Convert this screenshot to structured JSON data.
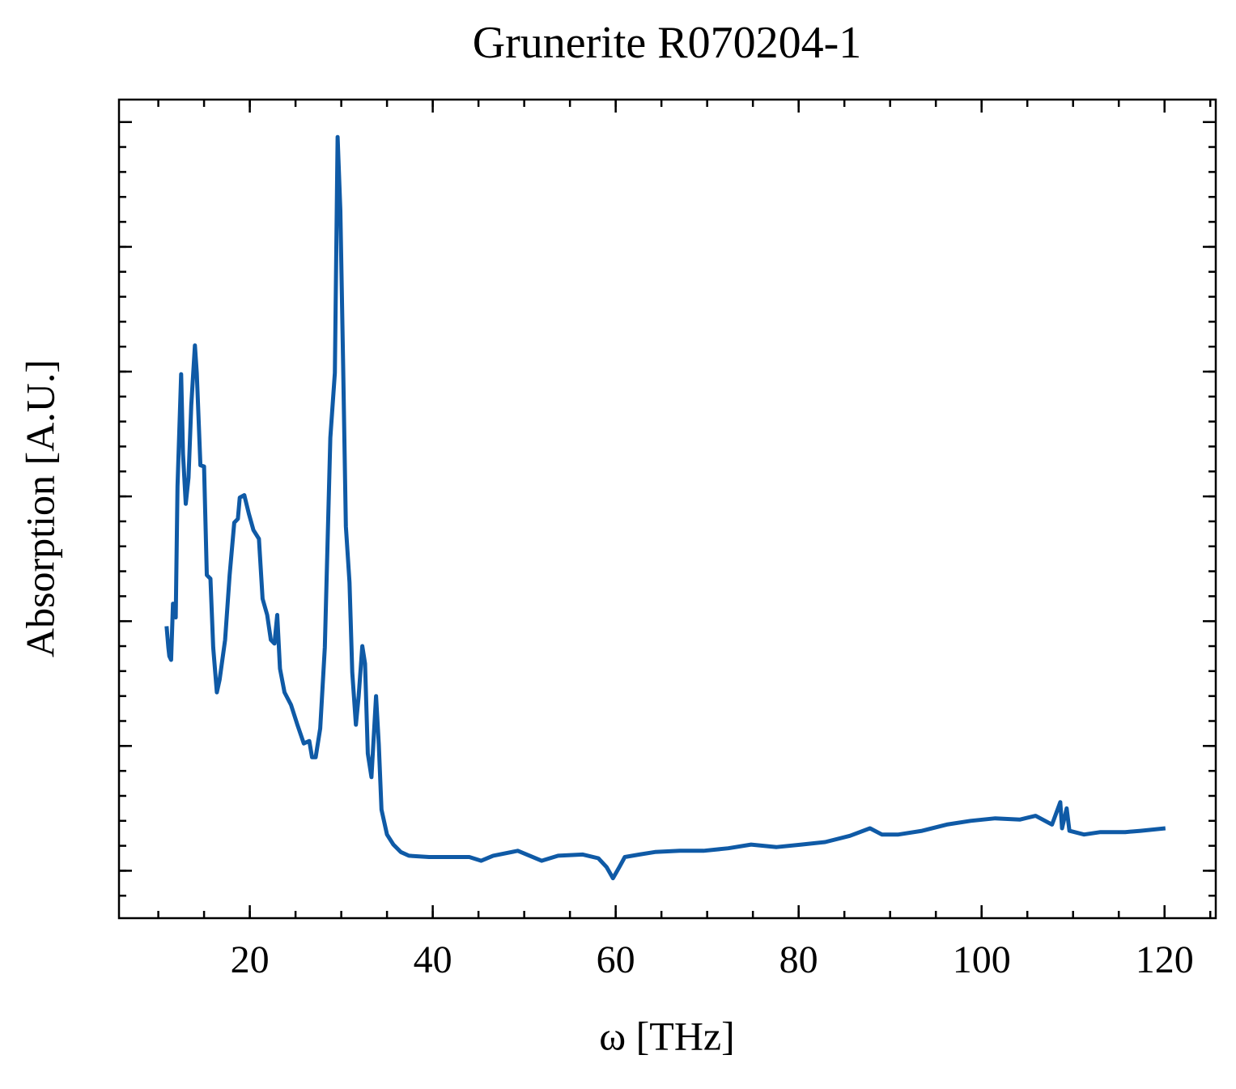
{
  "chart_data": {
    "type": "line",
    "title": "Grunerite R070204-1",
    "x_label": "ω [THz]",
    "y_label": "Absorption [A.U.]",
    "color": "#0f5aa6",
    "xlim": [
      5.7,
      125.6
    ],
    "xticks": [
      20,
      40,
      60,
      80,
      100,
      120
    ],
    "x_minor_step": 5,
    "ylim": [
      -0.38,
      6.18
    ],
    "yticks": [
      0,
      1,
      2,
      3,
      4,
      5,
      6
    ],
    "y_minor_step": 0.2,
    "x": [
      10.9,
      11.1,
      11.2,
      11.4,
      11.6,
      11.9,
      12.1,
      12.5,
      12.7,
      13.0,
      13.3,
      13.6,
      14.0,
      14.2,
      14.6,
      15.0,
      15.3,
      15.7,
      16.0,
      16.4,
      16.7,
      17.3,
      17.8,
      18.3,
      18.7,
      18.9,
      19.4,
      19.9,
      20.4,
      21.0,
      21.4,
      21.9,
      22.3,
      22.7,
      23.0,
      23.3,
      23.8,
      24.5,
      25.2,
      25.9,
      26.5,
      26.8,
      27.2,
      27.7,
      28.2,
      28.8,
      29.3,
      29.6,
      29.9,
      30.2,
      30.5,
      30.9,
      31.2,
      31.6,
      31.9,
      32.3,
      32.6,
      32.9,
      33.3,
      33.8,
      34.1,
      34.4,
      35.0,
      35.7,
      36.5,
      37.4,
      39.6,
      42.2,
      44.0,
      45.3,
      46.6,
      49.3,
      50.6,
      51.9,
      53.7,
      56.4,
      58.1,
      59.0,
      59.7,
      60.4,
      61.0,
      62.6,
      64.3,
      67.0,
      69.6,
      72.3,
      74.8,
      77.6,
      80.3,
      82.9,
      85.6,
      87.8,
      89.1,
      90.9,
      93.5,
      96.2,
      98.8,
      101.5,
      104.2,
      105.9,
      107.7,
      108.6,
      108.8,
      109.3,
      109.6,
      111.2,
      113.0,
      115.7,
      117.4,
      120.1
    ],
    "values": [
      1.96,
      1.79,
      1.72,
      1.69,
      2.14,
      2.03,
      3.08,
      3.98,
      3.34,
      2.94,
      3.15,
      3.73,
      4.21,
      3.99,
      3.25,
      3.24,
      2.37,
      2.34,
      1.79,
      1.43,
      1.53,
      1.85,
      2.37,
      2.79,
      2.82,
      2.99,
      3.01,
      2.86,
      2.73,
      2.66,
      2.18,
      2.05,
      1.85,
      1.82,
      2.05,
      1.62,
      1.43,
      1.33,
      1.17,
      1.02,
      1.04,
      0.91,
      0.91,
      1.14,
      1.79,
      3.47,
      3.99,
      5.88,
      5.29,
      4.06,
      2.76,
      2.31,
      1.59,
      1.17,
      1.4,
      1.8,
      1.66,
      0.94,
      0.75,
      1.4,
      1.01,
      0.49,
      0.29,
      0.21,
      0.15,
      0.12,
      0.11,
      0.11,
      0.11,
      0.08,
      0.12,
      0.16,
      0.12,
      0.08,
      0.12,
      0.13,
      0.1,
      0.03,
      -0.06,
      0.03,
      0.11,
      0.13,
      0.15,
      0.16,
      0.16,
      0.18,
      0.21,
      0.19,
      0.21,
      0.23,
      0.28,
      0.34,
      0.29,
      0.29,
      0.32,
      0.37,
      0.4,
      0.42,
      0.41,
      0.44,
      0.37,
      0.55,
      0.34,
      0.5,
      0.32,
      0.29,
      0.31,
      0.31,
      0.32,
      0.34
    ]
  }
}
